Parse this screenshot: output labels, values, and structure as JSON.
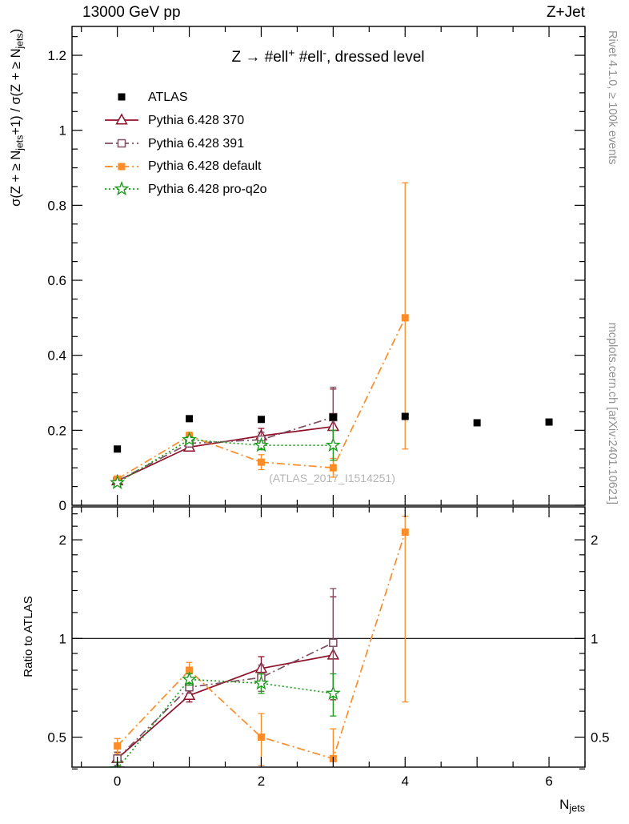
{
  "header": {
    "left": "13000 GeV pp",
    "right": "Z+Jet"
  },
  "side_texts": {
    "top": "Rivet 4.1.0, ≥ 100k events",
    "bottom": "mcplots.cern.ch [arXiv:2401.10621]"
  },
  "watermark": "(ATLAS_2017_I1514251)",
  "chart_data": {
    "type": "line",
    "title_parts": [
      {
        "t": "Z → #ell"
      },
      {
        "t": "+",
        "sup": true
      },
      {
        "t": " #ell"
      },
      {
        "t": "-",
        "sup": true
      },
      {
        "t": ", dressed level"
      }
    ],
    "x_axis": {
      "lim": [
        -0.63,
        6.5
      ],
      "labeled_ticks": [
        0,
        2,
        4,
        6
      ],
      "unlabeled_ticks": [
        1,
        3,
        5
      ],
      "minor_step": 0.5,
      "label_parts": [
        {
          "t": "N"
        },
        {
          "t": "jets",
          "sub": true
        }
      ]
    },
    "main_panel": {
      "ylabel_parts": [
        {
          "t": "σ(Z + ≥ N"
        },
        {
          "t": "jets",
          "sub": true
        },
        {
          "t": "+1) / σ(Z + ≥ N"
        },
        {
          "t": "jets",
          "sub": true
        },
        {
          "t": ")"
        }
      ],
      "yscale": "linear",
      "ylim": [
        0,
        1.277
      ],
      "yticks": [
        {
          "v": 0,
          "label": "0"
        },
        {
          "v": 0.2,
          "label": "0.2"
        },
        {
          "v": 0.4,
          "label": "0.4"
        },
        {
          "v": 0.6,
          "label": "0.6"
        },
        {
          "v": 0.8,
          "label": "0.8"
        },
        {
          "v": 1,
          "label": "1"
        },
        {
          "v": 1.2,
          "label": "1.2"
        }
      ],
      "y_minor_step": 0.05,
      "series": [
        {
          "name": "ATLAS",
          "color": "#000000",
          "marker": "square-filled",
          "line": "none",
          "x": [
            0,
            1,
            2,
            3,
            4,
            5,
            6
          ],
          "y": [
            0.15,
            0.231,
            0.229,
            0.235,
            0.237,
            0.22,
            0.222
          ],
          "yerr": [
            0.004,
            0.004,
            0.004,
            0.005,
            0.006,
            0.005,
            0.005
          ]
        },
        {
          "name": "Pythia 6.428 370",
          "color": "#8f1029",
          "marker": "triangle-open",
          "line": "solid",
          "x": [
            0,
            1,
            2,
            3
          ],
          "y": [
            0.065,
            0.155,
            0.185,
            0.21
          ],
          "yerr": [
            0.004,
            0.008,
            0.02,
            [
              0.05,
              0.1
            ]
          ]
        },
        {
          "name": "Pythia 6.428 391",
          "color": "#7e4e62",
          "marker": "square-open",
          "line": "dashdot",
          "x": [
            0,
            1,
            2,
            3
          ],
          "y": [
            0.065,
            0.165,
            0.175,
            0.235
          ],
          "yerr": [
            0.004,
            0.008,
            0.02,
            [
              0.07,
              0.08
            ]
          ]
        },
        {
          "name": "Pythia 6.428 default",
          "color": "#fb8c27",
          "marker": "square-filled",
          "line": "dashdot",
          "x": [
            0,
            1,
            2,
            3,
            4
          ],
          "y": [
            0.07,
            0.185,
            0.115,
            0.1,
            0.5
          ],
          "yerr": [
            0.004,
            0.01,
            0.02,
            0.025,
            [
              0.35,
              0.36
            ]
          ]
        },
        {
          "name": "Pythia 6.428 pro-q2o",
          "color": "#1e9c1e",
          "marker": "star-open",
          "line": "dotted",
          "x": [
            0,
            1,
            2,
            3
          ],
          "y": [
            0.06,
            0.175,
            0.16,
            0.16
          ],
          "yerr": [
            0.003,
            0.008,
            0.012,
            0.04
          ]
        }
      ]
    },
    "ratio_panel": {
      "ylabel": "Ratio to ATLAS",
      "yscale": "log",
      "ylim": [
        0.405,
        2.52
      ],
      "yticks": [
        {
          "v": 0.5,
          "label": "0.5"
        },
        {
          "v": 1,
          "label": "1"
        },
        {
          "v": 2,
          "label": "2"
        }
      ],
      "y_minor_ticks": [
        0.4,
        0.6,
        0.7,
        0.8,
        0.9,
        1.2,
        1.4,
        1.6,
        1.8,
        2.2,
        2.4
      ],
      "reference_line": 1,
      "series": [
        {
          "name": "Pythia 6.428 370",
          "color": "#8f1029",
          "marker": "triangle-open",
          "line": "solid",
          "x": [
            0,
            1,
            2,
            3
          ],
          "y": [
            0.43,
            0.67,
            0.81,
            0.89
          ],
          "yerr": [
            0.02,
            0.03,
            0.07,
            [
              0.24,
              0.45
            ]
          ]
        },
        {
          "name": "Pythia 6.428 391",
          "color": "#7e4e62",
          "marker": "square-open",
          "line": "dashdot",
          "x": [
            0,
            1,
            2,
            3
          ],
          "y": [
            0.43,
            0.71,
            0.76,
            0.97
          ],
          "yerr": [
            0.02,
            0.03,
            0.07,
            [
              0.3,
              0.45
            ]
          ]
        },
        {
          "name": "Pythia 6.428 default",
          "color": "#fb8c27",
          "marker": "square-filled",
          "line": "dashdot",
          "x": [
            0,
            1,
            2,
            3,
            4
          ],
          "y": [
            0.47,
            0.8,
            0.5,
            0.43,
            2.11
          ],
          "yerr": [
            0.025,
            0.045,
            0.09,
            0.1,
            [
              1.47,
              0.25
            ]
          ]
        },
        {
          "name": "Pythia 6.428 pro-q2o",
          "color": "#1e9c1e",
          "marker": "star-open",
          "line": "dotted",
          "x": [
            0,
            1,
            2,
            3
          ],
          "y": [
            0.4,
            0.75,
            0.73,
            0.68
          ],
          "yerr": [
            0.02,
            0.03,
            0.05,
            0.1
          ]
        }
      ]
    }
  }
}
